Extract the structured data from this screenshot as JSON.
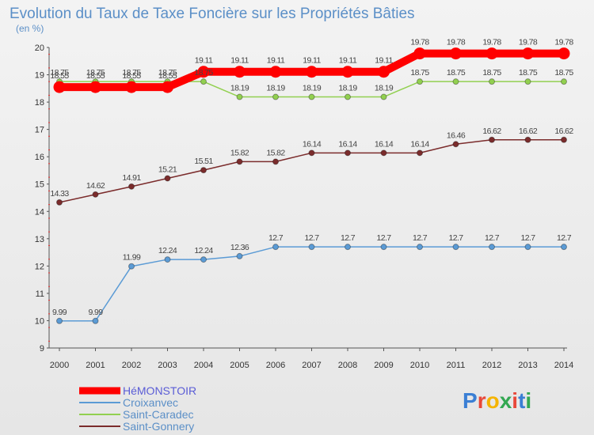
{
  "chart_data": {
    "type": "line",
    "title": "Evolution du Taux de Taxe Foncière sur les Propriétés Bâties",
    "subtitle": "(en %)",
    "xlabel": "",
    "ylabel": "",
    "ylim": [
      9,
      20
    ],
    "yticks": [
      "9",
      "10",
      "11",
      "12",
      "13",
      "14",
      "15",
      "16",
      "17",
      "18",
      "19",
      "20"
    ],
    "categories": [
      "2000",
      "2001",
      "2002",
      "2003",
      "2004",
      "2005",
      "2006",
      "2007",
      "2008",
      "2009",
      "2010",
      "2011",
      "2012",
      "2013",
      "2014"
    ],
    "grid": false,
    "legend_position": "bottom-left",
    "series": [
      {
        "name": "HéMONSTOIR",
        "color": "#ff0000",
        "values": [
          18.55,
          18.55,
          18.55,
          18.55,
          19.11,
          19.11,
          19.11,
          19.11,
          19.11,
          19.11,
          19.78,
          19.78,
          19.78,
          19.78,
          19.78
        ],
        "labels": [
          "18.55",
          "18.55",
          "18.55",
          "18.55",
          "19.11",
          "19.11",
          "19.11",
          "19.11",
          "19.11",
          "19.11",
          "19.78",
          "19.78",
          "19.78",
          "19.78",
          "19.78"
        ]
      },
      {
        "name": "Croixanvec",
        "color": "#5b9bd5",
        "values": [
          9.99,
          9.99,
          11.99,
          12.24,
          12.24,
          12.36,
          12.7,
          12.7,
          12.7,
          12.7,
          12.7,
          12.7,
          12.7,
          12.7,
          12.7
        ],
        "labels": [
          "9.99",
          "9.99",
          "11.99",
          "12.24",
          "12.24",
          "12.36",
          "12.7",
          "12.7",
          "12.7",
          "12.7",
          "12.7",
          "12.7",
          "12.7",
          "12.7",
          "12.7"
        ]
      },
      {
        "name": "Saint-Caradec",
        "color": "#92d050",
        "values": [
          18.75,
          18.75,
          18.75,
          18.75,
          18.75,
          18.19,
          18.19,
          18.19,
          18.19,
          18.19,
          18.75,
          18.75,
          18.75,
          18.75,
          18.75
        ],
        "labels": [
          "18.75",
          "18.75",
          "18.75",
          "18.75",
          "18.75",
          "18.19",
          "18.19",
          "18.19",
          "18.19",
          "18.19",
          "18.75",
          "18.75",
          "18.75",
          "18.75",
          "18.75"
        ]
      },
      {
        "name": "Saint-Gonnery",
        "color": "#7b2c2c",
        "values": [
          14.33,
          14.62,
          14.91,
          15.21,
          15.51,
          15.82,
          15.82,
          16.14,
          16.14,
          16.14,
          16.14,
          16.46,
          16.62,
          16.62,
          16.62
        ],
        "labels": [
          "14.33",
          "14.62",
          "14.91",
          "15.21",
          "15.51",
          "15.82",
          "15.82",
          "16.14",
          "16.14",
          "16.14",
          "16.14",
          "16.46",
          "16.62",
          "16.62",
          "16.62"
        ]
      }
    ]
  },
  "legend_colors": {
    "HéMONSTOIR": "#5a5cd6",
    "Croixanvec": "#5b8fc7",
    "Saint-Caradec": "#5b8fc7",
    "Saint-Gonnery": "#5b8fc7"
  },
  "brand": {
    "letters": [
      "P",
      "r",
      "o",
      "x",
      "i",
      "t",
      "i"
    ],
    "colors": [
      "#3b7fd4",
      "#e8483a",
      "#f5b400",
      "#33a852",
      "#e8483a",
      "#3b7fd4",
      "#33a852"
    ]
  }
}
